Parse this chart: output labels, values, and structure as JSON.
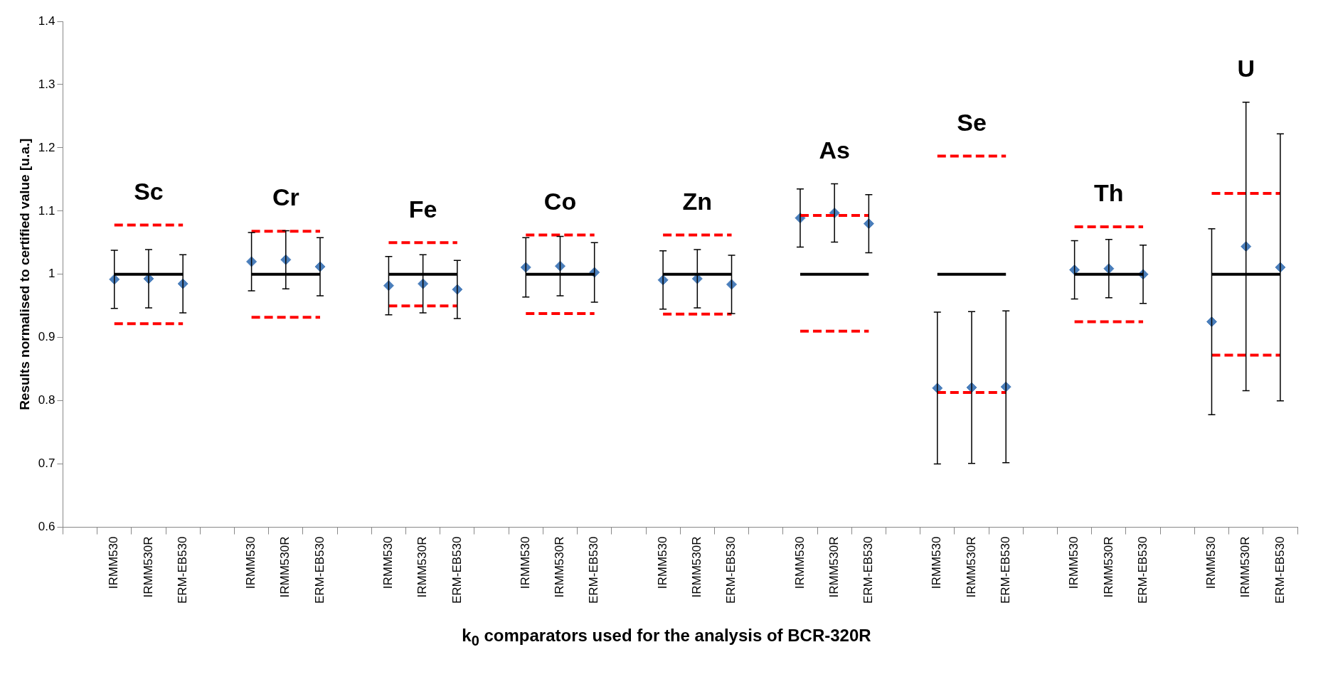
{
  "chart_data": {
    "type": "scatter",
    "xlabel": "k$_{0}$ comparators used for the analysis of BCR-320R",
    "ylabel": "Results normalised to certified value [u.a.]",
    "categories": [
      null,
      "IRMM530",
      "IRMM530R",
      "ERM-EB530",
      null,
      "IRMM530",
      "IRMM530R",
      "ERM-EB530",
      null,
      "IRMM530",
      "IRMM530R",
      "ERM-EB530",
      null,
      "IRMM530",
      "IRMM530R",
      "ERM-EB530",
      null,
      "IRMM530",
      "IRMM530R",
      "ERM-EB530",
      null,
      "IRMM530",
      "IRMM530R",
      "ERM-EB530",
      null,
      "IRMM530",
      "IRMM530R",
      "ERM-EB530",
      null,
      "IRMM530",
      "IRMM530R",
      "ERM-EB530",
      null,
      "IRMM530",
      "IRMM530R",
      "ERM-EB530"
    ],
    "series": [
      {
        "type": "line",
        "color": "#000000",
        "line_style": "solid",
        "values": [
          null,
          1,
          1,
          1,
          null,
          1,
          1,
          1,
          null,
          1,
          1,
          1,
          null,
          1,
          1,
          1,
          null,
          1,
          1,
          1,
          null,
          1,
          1,
          1,
          null,
          1,
          1,
          1,
          null,
          1,
          1,
          1,
          null,
          1,
          1,
          1
        ]
      },
      {
        "type": "line",
        "color": "#ff0000",
        "line_style": "dashed",
        "values": [
          null,
          1.078,
          1.078,
          1.078,
          null,
          1.068,
          1.068,
          1.068,
          null,
          1.05,
          1.05,
          1.05,
          null,
          1.062,
          1.062,
          1.062,
          null,
          1.062,
          1.062,
          1.062,
          null,
          1.093,
          1.093,
          1.093,
          null,
          1.187,
          1.187,
          1.187,
          null,
          1.075,
          1.075,
          1.075,
          null,
          1.128,
          1.128,
          1.128
        ]
      },
      {
        "type": "line",
        "color": "#ff0000",
        "line_style": "dashed",
        "values": [
          null,
          0.922,
          0.922,
          0.922,
          null,
          0.932,
          0.932,
          0.932,
          null,
          0.95,
          0.95,
          0.95,
          null,
          0.938,
          0.938,
          0.938,
          null,
          0.937,
          0.937,
          0.937,
          null,
          0.91,
          0.91,
          0.91,
          null,
          0.813,
          0.813,
          0.813,
          null,
          0.925,
          0.925,
          0.925,
          null,
          0.872,
          0.872,
          0.872
        ]
      },
      {
        "color": "#4a7ebb",
        "marker": "diamond",
        "values": [
          null,
          0.992,
          0.993,
          0.985,
          null,
          1.02,
          1.023,
          1.012,
          null,
          0.982,
          0.985,
          0.976,
          null,
          1.011,
          1.013,
          1.003,
          null,
          0.991,
          0.993,
          0.984,
          null,
          1.089,
          1.097,
          1.08,
          null,
          0.82,
          0.821,
          0.822,
          null,
          1.007,
          1.009,
          1.0,
          null,
          0.925,
          1.044,
          1.011
        ],
        "errors": [
          null,
          0.046,
          0.046,
          0.046,
          null,
          0.046,
          0.046,
          0.046,
          null,
          0.046,
          0.046,
          0.046,
          null,
          0.047,
          0.047,
          0.047,
          null,
          0.046,
          0.046,
          0.046,
          null,
          0.046,
          0.046,
          0.046,
          null,
          0.12,
          0.12,
          0.12,
          null,
          0.046,
          0.046,
          0.046,
          null,
          0.147,
          0.228,
          0.211
        ]
      }
    ],
    "ylim": [
      0.6,
      1.4
    ],
    "yticks": [
      0.6,
      0.7,
      0.8,
      0.9,
      1,
      1.1,
      1.2,
      1.3,
      1.4
    ],
    "grid": false,
    "legend": false,
    "annotations": [
      "Sc",
      "Cr",
      "Fe",
      "Co",
      "Zn",
      "As",
      "Se",
      "Th",
      "U"
    ]
  }
}
